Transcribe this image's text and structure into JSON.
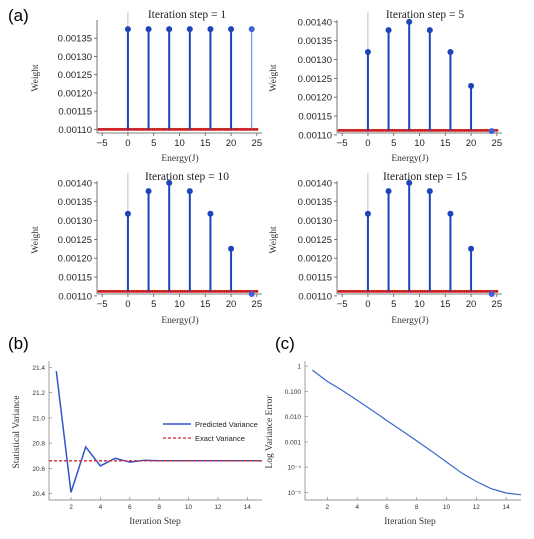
{
  "figure": {
    "panel_labels": [
      "(a)",
      "(b)",
      "(c)"
    ]
  },
  "chart_data": [
    {
      "panel": "(a)",
      "type": "scatter",
      "title": "Iteration step = 1",
      "xlabel": "Energy(J)",
      "ylabel": "Weight",
      "xlim": [
        -6,
        26
      ],
      "ylim": [
        0.00109,
        0.0014
      ],
      "x_ticks": [
        -5,
        0,
        5,
        10,
        15,
        20,
        25
      ],
      "y_ticks": [
        0.0011,
        0.00115,
        0.0012,
        0.00125,
        0.0013,
        0.00135
      ],
      "y_tick_labels": [
        "0.00110",
        "0.00115",
        "0.00120",
        "0.00125",
        "0.00130",
        "0.00135"
      ],
      "baseline": 0.0011,
      "stems": {
        "x": [
          0,
          4,
          8,
          12,
          16,
          20,
          24
        ],
        "y": [
          0.001375,
          0.001375,
          0.001375,
          0.001375,
          0.001375,
          0.001375,
          0.001375
        ]
      },
      "reference_weight": 0.0011,
      "grid": false
    },
    {
      "panel": "(a)",
      "type": "scatter",
      "title": "Iteration step = 5",
      "xlabel": "Energy(J)",
      "ylabel": "Weight",
      "xlim": [
        -6,
        26
      ],
      "ylim": [
        0.001105,
        0.001405
      ],
      "x_ticks": [
        -5,
        0,
        5,
        10,
        15,
        20,
        25
      ],
      "y_ticks": [
        0.0011,
        0.00115,
        0.0012,
        0.00125,
        0.0013,
        0.00135,
        0.0014
      ],
      "y_tick_labels": [
        "0.00110",
        "0.00115",
        "0.00120",
        "0.00125",
        "0.00130",
        "0.00135",
        "0.00140"
      ],
      "baseline": 0.001112,
      "stems": {
        "x": [
          0,
          4,
          8,
          12,
          16,
          20,
          24
        ],
        "y": [
          0.00132,
          0.001378,
          0.0014,
          0.001378,
          0.00132,
          0.00123,
          0.00111
        ]
      },
      "reference_weight": 0.001112,
      "grid": false
    },
    {
      "panel": "(a)",
      "type": "scatter",
      "title": "Iteration step = 10",
      "xlabel": "Energy(J)",
      "ylabel": "Weight",
      "xlim": [
        -6,
        26
      ],
      "ylim": [
        0.001105,
        0.001405
      ],
      "x_ticks": [
        -5,
        0,
        5,
        10,
        15,
        20,
        25
      ],
      "y_ticks": [
        0.0011,
        0.00115,
        0.0012,
        0.00125,
        0.0013,
        0.00135,
        0.0014
      ],
      "y_tick_labels": [
        "0.00110",
        "0.00115",
        "0.00120",
        "0.00125",
        "0.00130",
        "0.00135",
        "0.00140"
      ],
      "baseline": 0.001112,
      "stems": {
        "x": [
          0,
          4,
          8,
          12,
          16,
          20,
          24
        ],
        "y": [
          0.001318,
          0.001378,
          0.0014,
          0.001378,
          0.001318,
          0.001225,
          0.001105
        ]
      },
      "reference_weight": 0.001112,
      "grid": false
    },
    {
      "panel": "(a)",
      "type": "scatter",
      "title": "Iteration step = 15",
      "xlabel": "Energy(J)",
      "ylabel": "Weight",
      "xlim": [
        -6,
        26
      ],
      "ylim": [
        0.001105,
        0.001405
      ],
      "x_ticks": [
        -5,
        0,
        5,
        10,
        15,
        20,
        25
      ],
      "y_ticks": [
        0.0011,
        0.00115,
        0.0012,
        0.00125,
        0.0013,
        0.00135,
        0.0014
      ],
      "y_tick_labels": [
        "0.00110",
        "0.00115",
        "0.00120",
        "0.00125",
        "0.00130",
        "0.00135",
        "0.00140"
      ],
      "baseline": 0.001112,
      "stems": {
        "x": [
          0,
          4,
          8,
          12,
          16,
          20,
          24
        ],
        "y": [
          0.001318,
          0.001378,
          0.0014,
          0.001378,
          0.001318,
          0.001225,
          0.001105
        ]
      },
      "reference_weight": 0.001112,
      "grid": false
    },
    {
      "panel": "(b)",
      "type": "line",
      "xlabel": "Iteration Step",
      "ylabel": "Statistical Variance",
      "xlim": [
        0.5,
        15
      ],
      "ylim": [
        20.35,
        21.45
      ],
      "x_ticks": [
        2,
        4,
        6,
        8,
        10,
        12,
        14
      ],
      "y_ticks": [
        20.4,
        20.6,
        20.8,
        21.0,
        21.2,
        21.4
      ],
      "y_tick_labels": [
        "20.4",
        "20.6",
        "20.8",
        "21.0",
        "21.2",
        "21.4"
      ],
      "series": [
        {
          "name": "Predicted Variance",
          "color": "#2f54c8",
          "style": "solid",
          "x": [
            1,
            2,
            3,
            4,
            5,
            6,
            7,
            8,
            9,
            10,
            11,
            12,
            13,
            14,
            15
          ],
          "y": [
            21.37,
            20.41,
            20.77,
            20.62,
            20.68,
            20.65,
            20.665,
            20.66,
            20.66,
            20.66,
            20.66,
            20.66,
            20.66,
            20.66,
            20.66
          ]
        },
        {
          "name": "Exact Variance",
          "color": "#d9262c",
          "style": "dashed",
          "x": [
            0.5,
            15
          ],
          "y": [
            20.66,
            20.66
          ]
        }
      ],
      "legend": "center-right",
      "grid": false
    },
    {
      "panel": "(c)",
      "type": "line",
      "xlabel": "Iteration Step",
      "ylabel": "Log Variance Error",
      "log_y": true,
      "xlim": [
        0.5,
        15
      ],
      "ylim": [
        5e-06,
        1.6
      ],
      "x_ticks": [
        2,
        4,
        6,
        8,
        10,
        12,
        14
      ],
      "y_ticks": [
        1,
        0.1,
        0.01,
        0.001,
        0.0001,
        1e-05
      ],
      "y_tick_labels": [
        "1",
        "0.100",
        "0.010",
        "0.001",
        "10⁻⁴",
        "10⁻⁵"
      ],
      "series": [
        {
          "color": "#3a66cc",
          "x": [
            1,
            2,
            3,
            4,
            5,
            6,
            7,
            8,
            9,
            10,
            11,
            12,
            13,
            14,
            15
          ],
          "y": [
            0.7,
            0.25,
            0.11,
            0.045,
            0.018,
            0.007,
            0.0028,
            0.0011,
            0.00043,
            0.00016,
            6e-05,
            2.7e-05,
            1.4e-05,
            9.5e-06,
            8e-06
          ]
        }
      ],
      "grid": false
    }
  ]
}
